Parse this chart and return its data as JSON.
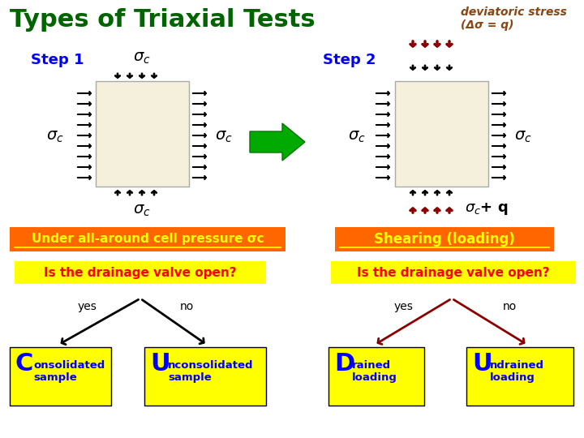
{
  "title": "Types of Triaxial Tests",
  "title_color": "#006400",
  "bg_color": "#ffffff",
  "step1_label": "Step 1",
  "step2_label": "Step 2",
  "step_color": "#0000ff",
  "deviatoric_text": "deviatoric stress\n(Δσ = q)",
  "deviatoric_color": "#8B4513",
  "sample_color": "#f5f0dc",
  "arrow_color_black": "#000000",
  "arrow_color_dark_red": "#8B0000",
  "label1_text": "Under all-around cell pressure σc",
  "label1_bg": "#ff6600",
  "label1_fg": "#ffff00",
  "label2_text": "Shearing (loading)",
  "label2_bg": "#ff6600",
  "label2_fg": "#ffff00",
  "drain1_text": "Is the drainage valve open?",
  "drain1_bg": "#ffff00",
  "drain1_fg": "#ff0000",
  "drain2_text": "Is the drainage valve open?",
  "drain2_bg": "#ffff00",
  "drain2_fg": "#ff0000",
  "box_yellow_bg": "#ffff00",
  "box_yellow_fg": "#0000ff",
  "yes_no_color": "#000000",
  "yes_no_color2": "#8B0000"
}
